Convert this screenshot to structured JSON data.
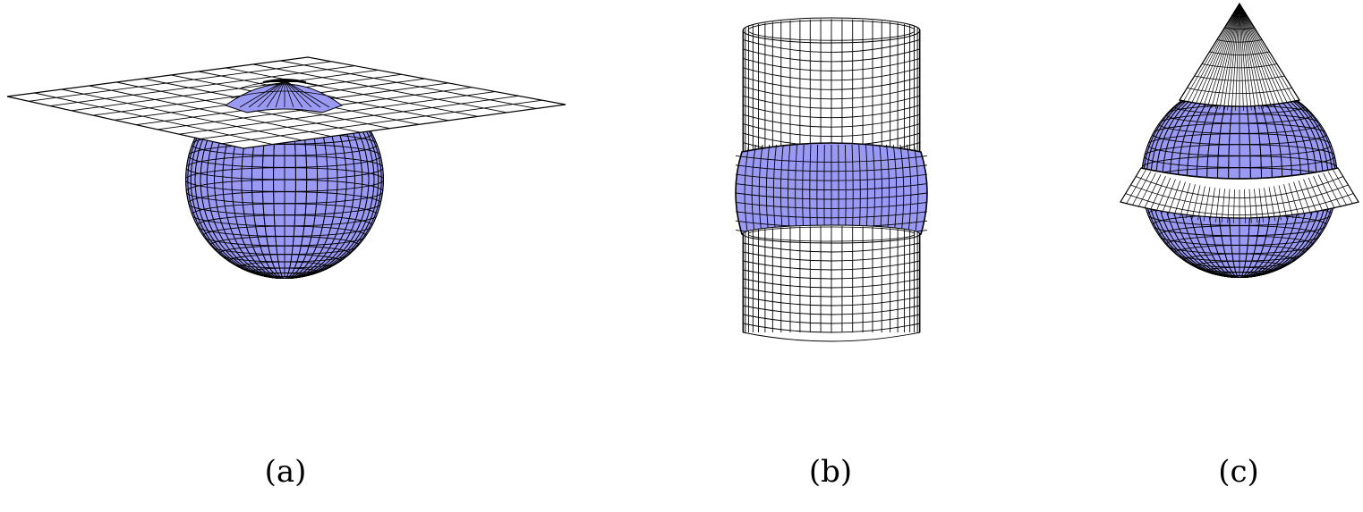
{
  "panels": [
    {
      "id": "a",
      "caption": "(a)",
      "shape": "sphere-intersected-by-plane"
    },
    {
      "id": "b",
      "caption": "(b)",
      "shape": "sphere-intersected-by-cylinder"
    },
    {
      "id": "c",
      "caption": "(c)",
      "shape": "sphere-intersected-by-cone"
    }
  ],
  "colors": {
    "sphere_fill": "#9a9af5",
    "wire_fill": "#ffffff",
    "line": "#000000",
    "background": "#ffffff"
  }
}
